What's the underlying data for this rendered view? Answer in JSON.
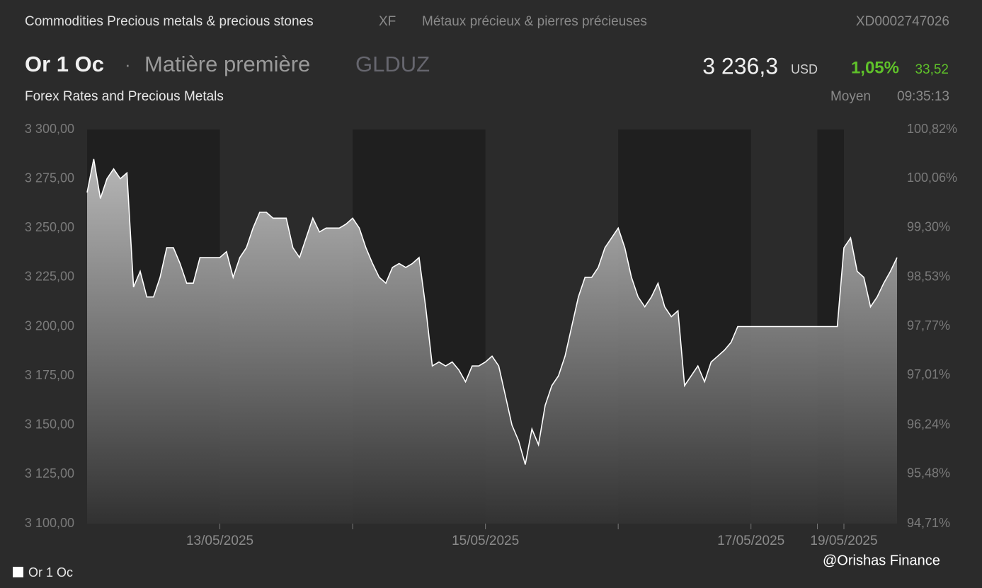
{
  "header": {
    "category": "Commodities Precious metals & precious stones",
    "exchange": "XF",
    "category_fr": "Métaux précieux & pierres précieuses",
    "isin": "XD0002747026",
    "name": "Or 1 Oc",
    "separator": "·",
    "asset_type": "Matière première",
    "symbol": "GLDUZ",
    "price": "3 236,3",
    "currency": "USD",
    "change_pct": "1,05%",
    "change": "33,52",
    "source": "Forex Rates and Precious Metals",
    "price_type": "Moyen",
    "time": "09:35:13"
  },
  "chart_data": {
    "type": "area",
    "categories": [
      null,
      null,
      null,
      null,
      null,
      null,
      null,
      null,
      null,
      null,
      null,
      null,
      null,
      null,
      null,
      null,
      null,
      null,
      null,
      null,
      "13/05/2025",
      null,
      null,
      null,
      null,
      null,
      null,
      null,
      null,
      null,
      null,
      null,
      null,
      null,
      null,
      null,
      null,
      null,
      null,
      null,
      null,
      null,
      null,
      null,
      null,
      null,
      null,
      null,
      null,
      null,
      null,
      null,
      null,
      null,
      null,
      null,
      null,
      null,
      null,
      null,
      "15/05/2025",
      null,
      null,
      null,
      null,
      null,
      null,
      null,
      null,
      null,
      null,
      null,
      null,
      null,
      null,
      null,
      null,
      null,
      null,
      null,
      null,
      null,
      null,
      null,
      null,
      null,
      null,
      null,
      null,
      null,
      null,
      null,
      null,
      null,
      null,
      null,
      null,
      null,
      null,
      null,
      "17/05/2025",
      null,
      null,
      null,
      null,
      null,
      null,
      null,
      null,
      null,
      null,
      null,
      null,
      null,
      "19/05/2025",
      null,
      null,
      null,
      null,
      null,
      null,
      null,
      null
    ],
    "series": [
      {
        "name": "Or 1 Oc",
        "color": "#ffffff",
        "values": [
          3268,
          3285,
          3265,
          3275,
          3280,
          3275,
          3278,
          3220,
          3228,
          3215,
          3215,
          3225,
          3240,
          3240,
          3232,
          3222,
          3222,
          3235,
          3235,
          3235,
          3235,
          3238,
          3225,
          3235,
          3240,
          3250,
          3258,
          3258,
          3255,
          3255,
          3255,
          3240,
          3235,
          3245,
          3255,
          3248,
          3250,
          3250,
          3250,
          3252,
          3255,
          3250,
          3240,
          3232,
          3225,
          3222,
          3230,
          3232,
          3230,
          3232,
          3235,
          3210,
          3180,
          3182,
          3180,
          3182,
          3178,
          3172,
          3180,
          3180,
          3182,
          3185,
          3180,
          3165,
          3150,
          3142,
          3130,
          3148,
          3140,
          3160,
          3170,
          3175,
          3185,
          3200,
          3215,
          3225,
          3225,
          3230,
          3240,
          3245,
          3250,
          3240,
          3225,
          3215,
          3210,
          3215,
          3222,
          3210,
          3205,
          3208,
          3170,
          3175,
          3180,
          3172,
          3182,
          3185,
          3188,
          3192,
          3200,
          3200,
          3200,
          3200,
          3200,
          3200,
          3200,
          3200,
          3200,
          3200,
          3200,
          3200,
          3200,
          3200,
          3200,
          3200,
          3240,
          3245,
          3228,
          3225,
          3210,
          3215,
          3222,
          3228,
          3235
        ]
      }
    ],
    "ylim": [
      3100,
      3300
    ],
    "yticks": [
      {
        "value": 3100,
        "label": "3 100,00"
      },
      {
        "value": 3125,
        "label": "3 125,00"
      },
      {
        "value": 3150,
        "label": "3 150,00"
      },
      {
        "value": 3175,
        "label": "3 175,00"
      },
      {
        "value": 3200,
        "label": "3 200,00"
      },
      {
        "value": 3225,
        "label": "3 225,00"
      },
      {
        "value": 3250,
        "label": "3 250,00"
      },
      {
        "value": 3275,
        "label": "3 275,00"
      },
      {
        "value": 3300,
        "label": "3 300,00"
      }
    ],
    "y2lim": [
      94.71,
      100.82
    ],
    "y2ticks": [
      {
        "value": 94.71,
        "label": "94,71%"
      },
      {
        "value": 95.48,
        "label": "95,48%"
      },
      {
        "value": 96.24,
        "label": "96,24%"
      },
      {
        "value": 97.01,
        "label": "97,01%"
      },
      {
        "value": 97.77,
        "label": "97,77%"
      },
      {
        "value": 98.53,
        "label": "98,53%"
      },
      {
        "value": 99.3,
        "label": "99,30%"
      },
      {
        "value": 100.06,
        "label": "100,06%"
      },
      {
        "value": 100.82,
        "label": "100,82%"
      }
    ],
    "legend": "bottom-left",
    "watermark": "@Orishas Finance"
  }
}
